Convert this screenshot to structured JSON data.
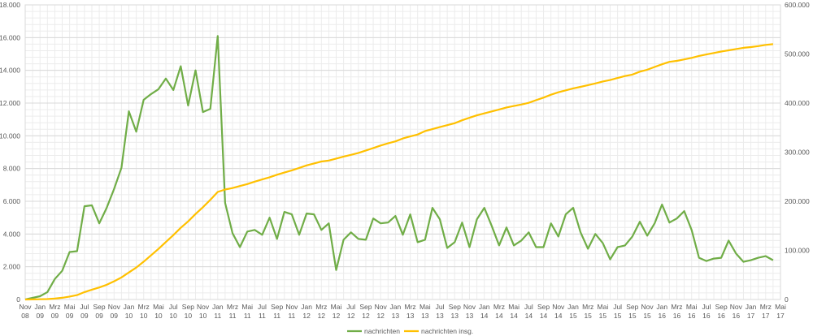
{
  "chart_data": {
    "type": "line",
    "title": "",
    "xlabel": "",
    "ylabel": "",
    "grid": true,
    "legend_position": "bottom",
    "ylim_left": [
      0,
      18000
    ],
    "ylim_right": [
      0,
      600000
    ],
    "left_ticks": [
      "0",
      "2.000",
      "4.000",
      "6.000",
      "8.000",
      "10.000",
      "12.000",
      "14.000",
      "16.000",
      "18.000"
    ],
    "right_ticks": [
      "0",
      "100.000",
      "200.000",
      "300.000",
      "400.000",
      "500.000",
      "600.000"
    ],
    "x_ticks": [
      [
        "Nov",
        "08"
      ],
      [
        "Jan",
        "09"
      ],
      [
        "Mrz",
        "09"
      ],
      [
        "Mai",
        "09"
      ],
      [
        "Jul",
        "09"
      ],
      [
        "Sep",
        "09"
      ],
      [
        "Nov",
        "09"
      ],
      [
        "Jan",
        "10"
      ],
      [
        "Mrz",
        "10"
      ],
      [
        "Mai",
        "10"
      ],
      [
        "Jul",
        "10"
      ],
      [
        "Sep",
        "10"
      ],
      [
        "Nov",
        "10"
      ],
      [
        "Jan",
        "11"
      ],
      [
        "Mrz",
        "11"
      ],
      [
        "Mai",
        "11"
      ],
      [
        "Jul",
        "11"
      ],
      [
        "Sep",
        "11"
      ],
      [
        "Nov",
        "11"
      ],
      [
        "Jan",
        "12"
      ],
      [
        "Mrz",
        "12"
      ],
      [
        "Mai",
        "12"
      ],
      [
        "Jul",
        "12"
      ],
      [
        "Sep",
        "12"
      ],
      [
        "Nov",
        "12"
      ],
      [
        "Jan",
        "13"
      ],
      [
        "Mrz",
        "13"
      ],
      [
        "Mai",
        "13"
      ],
      [
        "Jul",
        "13"
      ],
      [
        "Sep",
        "13"
      ],
      [
        "Nov",
        "13"
      ],
      [
        "Jan",
        "14"
      ],
      [
        "Mrz",
        "14"
      ],
      [
        "Mai",
        "14"
      ],
      [
        "Jul",
        "14"
      ],
      [
        "Sep",
        "14"
      ],
      [
        "Nov",
        "14"
      ],
      [
        "Jan",
        "15"
      ],
      [
        "Mrz",
        "15"
      ],
      [
        "Mai",
        "15"
      ],
      [
        "Jul",
        "15"
      ],
      [
        "Sep",
        "15"
      ],
      [
        "Nov",
        "15"
      ],
      [
        "Jan",
        "16"
      ],
      [
        "Mrz",
        "16"
      ],
      [
        "Mai",
        "16"
      ],
      [
        "Jul",
        "16"
      ],
      [
        "Sep",
        "16"
      ],
      [
        "Nov",
        "16"
      ],
      [
        "Jan",
        "17"
      ],
      [
        "Mrz",
        "17"
      ],
      [
        "Mai",
        "17"
      ]
    ],
    "series": [
      {
        "name": "nachrichten",
        "color": "#70ad47",
        "axis": "left",
        "values": [
          0,
          100,
          200,
          450,
          1250,
          1750,
          2900,
          2950,
          5700,
          5750,
          4650,
          5600,
          6750,
          8050,
          11500,
          10250,
          12200,
          12550,
          12850,
          13500,
          12800,
          14250,
          11850,
          14000,
          11450,
          11650,
          16100,
          5900,
          4050,
          3200,
          4150,
          4250,
          3950,
          5000,
          3700,
          5350,
          5200,
          3950,
          5250,
          5200,
          4250,
          4650,
          1800,
          3650,
          4100,
          3700,
          3650,
          4950,
          4650,
          4700,
          5100,
          3950,
          5200,
          3500,
          3650,
          5600,
          4900,
          3150,
          3500,
          4700,
          3200,
          4900,
          5600,
          4500,
          3300,
          4400,
          3300,
          3600,
          4100,
          3200,
          3200,
          4650,
          3850,
          5200,
          5600,
          4100,
          3100,
          4000,
          3450,
          2450,
          3200,
          3300,
          3850,
          4750,
          3900,
          4650,
          5800,
          4700,
          4950,
          5400,
          4250,
          2550,
          2350,
          2500,
          2550,
          3600,
          2800,
          2300,
          2400,
          2550,
          2650,
          2400
        ]
      },
      {
        "name": "nachrichten insg.",
        "color": "#ffc000",
        "axis": "right",
        "values": [
          0,
          200,
          500,
          900,
          1800,
          3500,
          6000,
          9000,
          15000,
          20000,
          24500,
          30000,
          37000,
          45000,
          55000,
          65000,
          77000,
          90000,
          103000,
          117000,
          131000,
          146000,
          159000,
          174000,
          188000,
          203000,
          219000,
          224000,
          227000,
          231000,
          235000,
          240000,
          244500,
          249000,
          254000,
          258500,
          263000,
          268000,
          273000,
          277000,
          281000,
          283000,
          287000,
          291000,
          294500,
          298500,
          303500,
          308500,
          313500,
          318000,
          322000,
          328000,
          332000,
          336000,
          343000,
          347000,
          351000,
          355000,
          359000,
          365000,
          370000,
          375000,
          379000,
          383000,
          387000,
          391000,
          394000,
          397000,
          400500,
          406000,
          411000,
          417000,
          422000,
          426000,
          430000,
          433000,
          436500,
          440000,
          444000,
          447000,
          451000,
          455000,
          458000,
          464000,
          468000,
          473500,
          479000,
          484000,
          486000,
          489000,
          492000,
          496000,
          499000,
          502000,
          505000,
          507500,
          510000,
          512500,
          514000,
          516000,
          518500,
          520000
        ]
      }
    ]
  }
}
